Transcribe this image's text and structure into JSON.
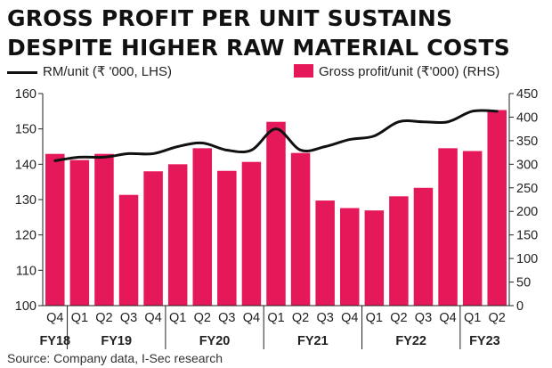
{
  "title_line1": "GROSS PROFIT PER UNIT SUSTAINS",
  "title_line2": "DESPITE HIGHER RAW MATERIAL COSTS",
  "legend": {
    "rm": "RM/unit (₹ '000, LHS)",
    "gp": "Gross profit/unit (₹'000) (RHS)"
  },
  "source": "Source: Company data, I-Sec research",
  "colors": {
    "bar": "#e5195a",
    "line": "#111111"
  },
  "chart_data": {
    "type": "bar",
    "categories": [
      "Q4",
      "Q1",
      "Q2",
      "Q3",
      "Q4",
      "Q1",
      "Q2",
      "Q3",
      "Q4",
      "Q1",
      "Q2",
      "Q3",
      "Q4",
      "Q1",
      "Q2",
      "Q3",
      "Q4",
      "Q1",
      "Q2"
    ],
    "fiscal_years": [
      {
        "label": "FY18",
        "start": 0,
        "end": 0
      },
      {
        "label": "FY19",
        "start": 1,
        "end": 4
      },
      {
        "label": "FY20",
        "start": 5,
        "end": 8
      },
      {
        "label": "FY21",
        "start": 9,
        "end": 12
      },
      {
        "label": "FY22",
        "start": 13,
        "end": 16
      },
      {
        "label": "FY23",
        "start": 17,
        "end": 18
      }
    ],
    "series": [
      {
        "name": "Gross profit/unit (₹'000) (RHS)",
        "type": "bar",
        "axis": "right",
        "values": [
          322,
          309,
          322,
          235,
          285,
          300,
          334,
          286,
          305,
          390,
          324,
          223,
          207,
          202,
          232,
          250,
          334,
          328,
          415
        ]
      },
      {
        "name": "RM/unit (₹ '000, LHS)",
        "type": "line",
        "axis": "left",
        "values": [
          141,
          142,
          142,
          143,
          143,
          145,
          146,
          144,
          144,
          150,
          144,
          145,
          147,
          148,
          152,
          152,
          152,
          155,
          155
        ]
      }
    ],
    "ylim_left": [
      100,
      160
    ],
    "yticks_left": [
      100,
      110,
      120,
      130,
      140,
      150,
      160
    ],
    "ylim_right": [
      0,
      450
    ],
    "yticks_right": [
      0,
      50,
      100,
      150,
      200,
      250,
      300,
      350,
      400,
      450
    ],
    "grid": false
  }
}
